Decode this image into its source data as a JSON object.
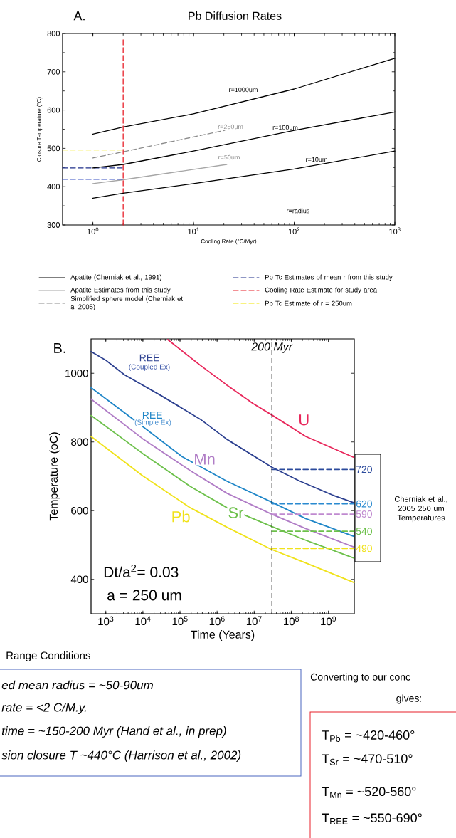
{
  "chart_data": [
    {
      "type": "line",
      "title": "Pb Diffusion Rates",
      "xlabel": "Cooling Rate (°C/Myr)",
      "ylabel": "Closure Temperature (°C)",
      "log": "x",
      "xlim": [
        0.5,
        1000
      ],
      "ylim": [
        300,
        800
      ],
      "xticks": [
        {
          "value": 1,
          "label": "10$^{0}$"
        },
        {
          "value": 10,
          "label": "10$^{1}$"
        },
        {
          "value": 100,
          "label": "10$^{2}$"
        },
        {
          "value": 1000,
          "label": "10$^{3}$"
        }
      ],
      "yticks": [
        300,
        400,
        500,
        600,
        700,
        800
      ],
      "legend": "bottom",
      "annotations": [
        "A.",
        "r=1000um",
        "r=100um",
        "r=10um",
        "r=250um",
        "r=50um",
        "r=radius"
      ],
      "series": [
        {
          "name": "Apatite (Cherniak et al., 1991)",
          "color": "#000000",
          "x": [
            1,
            2,
            10,
            100,
            500,
            1000
          ],
          "values": [
            537,
            556,
            590,
            655,
            711,
            735
          ]
        },
        {
          "name": "Apatite Estimates from this study",
          "color": "#a6a6a6",
          "x": [
            1,
            2,
            21.4
          ],
          "values": [
            408,
            418,
            458
          ]
        },
        {
          "name": "Simplified sphere model (Cherniak et al 2005)",
          "color": "#8c8c8c",
          "line_style": "dashed",
          "x": [
            1,
            2,
            20.4
          ],
          "values": [
            475,
            491,
            547
          ]
        },
        {
          "name": "Pb Tc Estimates of mean r from this study",
          "color": "#1f2f8a",
          "line_style": "dashed",
          "x": [
            0.5,
            2
          ],
          "values": [
            449,
            449
          ]
        },
        {
          "name": "Cooling Rate Estimate for study area",
          "color": "#e8202a",
          "line_style": "dashed",
          "x": [
            2,
            2
          ],
          "values": [
            300,
            790
          ]
        },
        {
          "name": "Pb Tc Estimate of r = 250um",
          "color": "#f2e600",
          "line_style": "dashed",
          "x": [
            0.5,
            2
          ],
          "values": [
            496,
            496
          ]
        },
        {
          "color": "#000000",
          "x": [
            1,
            2,
            10,
            100,
            1000
          ],
          "values": [
            449,
            458,
            493,
            547,
            595
          ]
        },
        {
          "color": "#000000",
          "x": [
            1,
            2,
            10,
            100,
            1000
          ],
          "values": [
            370,
            383,
            408,
            446,
            493
          ]
        },
        {
          "color": "#3b52c4",
          "line_style": "dashed",
          "x": [
            0.5,
            2
          ],
          "values": [
            419,
            419
          ]
        }
      ]
    },
    {
      "type": "line",
      "xlabel": "Time (Years)",
      "ylabel": "Temperature (oC)",
      "log": "x",
      "xlim": [
        400,
        5000000000
      ],
      "ylim": [
        300,
        1100
      ],
      "xticks": [
        {
          "value": 1000,
          "label": "10$^{3}$"
        },
        {
          "value": 10000,
          "label": "10$^{4}$"
        },
        {
          "value": 100000,
          "label": "10$^{5}$"
        },
        {
          "value": 1000000,
          "label": "10$^{6}$"
        },
        {
          "value": 10000000,
          "label": "10$^{7}$"
        },
        {
          "value": 100000000,
          "label": "10$^{8}$"
        },
        {
          "value": 1000000000,
          "label": "10$^{9}$"
        }
      ],
      "yticks": [
        400,
        600,
        800,
        1000
      ],
      "ref_lines": [
        {
          "axis": "x",
          "value": 30000000,
          "label": "200 Myr",
          "color": "#000000",
          "line_style": "dashed"
        }
      ],
      "annotations": [
        "B.",
        "Dt/a$^{2}$= 0.03",
        "a = 250 um",
        "Cherniak et al., 2005 250 um Temperatures",
        "(Coupled Ex)",
        "(Simple Ex)"
      ],
      "series": [
        {
          "name": "U",
          "color": "#e8265a",
          "x": [
            46800,
            355000,
            1820000,
            9330000,
            29500000,
            245000000,
            4900000000
          ],
          "values": [
            1098,
            1023,
            966,
            912,
            879,
            816,
            755
          ]
        },
        {
          "name": "REE",
          "color": "#2b3f8f",
          "x": [
            400,
            1000,
            3160,
            30900,
            355000,
            1820000,
            29500000,
            162000000,
            1260000000,
            4900000000
          ],
          "values": [
            1063,
            1038,
            996,
            935,
            866,
            808,
            727,
            687,
            646,
            623
          ]
        },
        {
          "name": "REE",
          "color": "#1f86c8",
          "x": [
            400,
            4370,
            115000,
            1820000,
            29500000,
            245000000,
            4900000000
          ],
          "values": [
            958,
            874,
            757,
            686,
            625,
            577,
            525
          ]
        },
        {
          "name": "Mn",
          "color": "#b07cc6",
          "x": [
            400,
            10000,
            186000,
            1820000,
            29500000,
            245000000,
            4900000000
          ],
          "values": [
            925,
            809,
            717,
            651,
            590,
            548,
            494
          ]
        },
        {
          "name": "Sr",
          "color": "#6cc04a",
          "x": [
            400,
            10000,
            186000,
            1820000,
            29500000,
            245000000,
            4900000000
          ],
          "values": [
            877,
            766,
            671,
            609,
            554,
            514,
            462
          ]
        },
        {
          "name": "Pb",
          "color": "#f0e21a",
          "x": [
            400,
            10000,
            186000,
            1820000,
            29500000,
            245000000,
            4900000000
          ],
          "values": [
            816,
            701,
            609,
            552,
            487,
            448,
            391
          ]
        },
        {
          "color": "#2b4a9c",
          "line_style": "dashed",
          "x": [
            30000000,
            5000000000
          ],
          "values": [
            720,
            720
          ],
          "value_labels": [
            null,
            "720"
          ]
        },
        {
          "color": "#2a8ad0",
          "line_style": "dashed",
          "x": [
            30000000,
            5000000000
          ],
          "values": [
            620,
            620
          ],
          "value_labels": [
            null,
            "620"
          ]
        },
        {
          "color": "#c08ad0",
          "line_style": "dashed",
          "x": [
            30000000,
            5000000000
          ],
          "values": [
            590,
            590
          ],
          "value_labels": [
            null,
            "590"
          ]
        },
        {
          "color": "#6cc04a",
          "line_style": "dashed",
          "x": [
            30000000,
            5000000000
          ],
          "values": [
            540,
            540
          ],
          "value_labels": [
            null,
            "540"
          ]
        },
        {
          "color": "#f0e21a",
          "line_style": "dashed",
          "x": [
            30000000,
            5000000000
          ],
          "values": [
            490,
            490
          ],
          "value_labels": [
            null,
            "490"
          ]
        }
      ]
    },
    {
      "type": "other",
      "title": "Range Conditions",
      "annotations": [
        "ed mean radius = ~50-90um",
        "rate = <2 C/M.y.",
        "time = ~150-200 Myr (Hand et al., in prep)",
        "sion closure T ~440°C (Harrison et al., 2002)",
        "Converting to our conc",
        "gives:",
        "T$_{Pb}$ = ~420-460°",
        "T$_{Sr}$  = ~470-510°",
        "T$_{Mn}$ = ~520-560°",
        "T$_{REE}$ = ~550-690°"
      ]
    }
  ]
}
